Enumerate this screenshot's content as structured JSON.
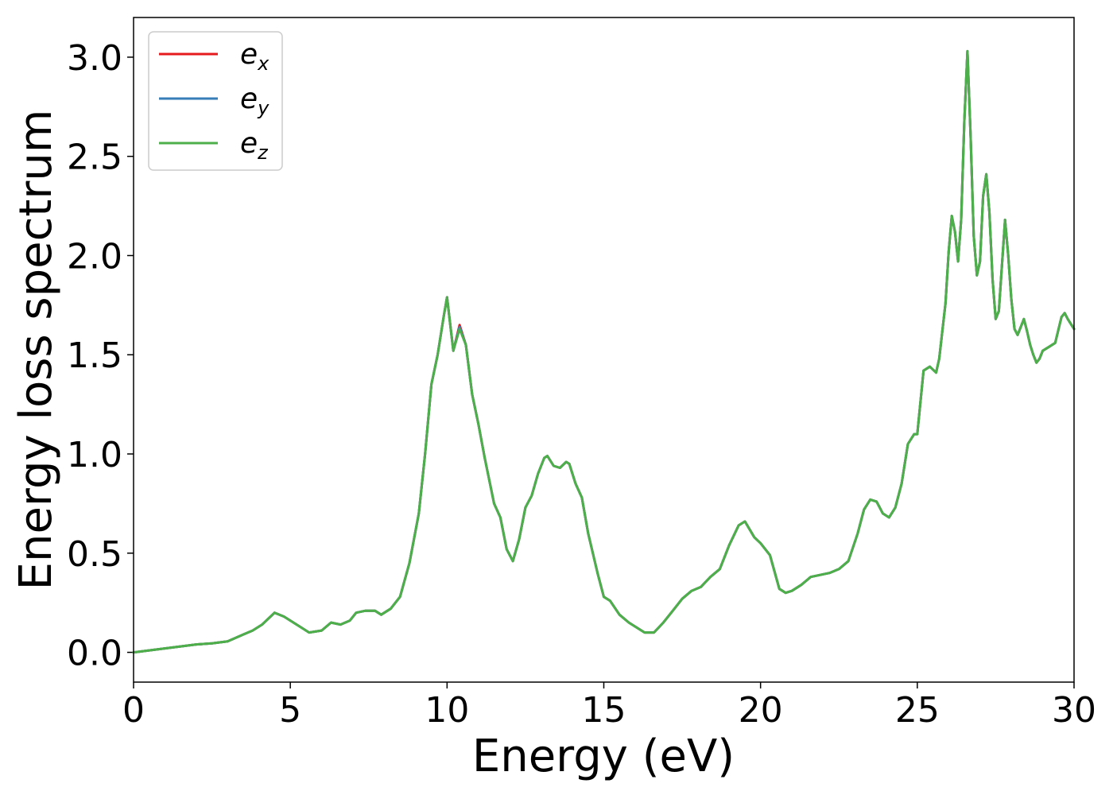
{
  "chart_data": {
    "type": "line",
    "xlabel": "Energy (eV)",
    "ylabel": "Energy loss spectrum",
    "xlim": [
      0,
      30
    ],
    "ylim": [
      -0.15,
      3.2
    ],
    "xticks": [
      0,
      5,
      10,
      15,
      20,
      25,
      30
    ],
    "xtick_labels": [
      "0",
      "5",
      "10",
      "15",
      "20",
      "25",
      "30"
    ],
    "yticks": [
      0.0,
      0.5,
      1.0,
      1.5,
      2.0,
      2.5,
      3.0
    ],
    "ytick_labels": [
      "0.0",
      "0.5",
      "1.0",
      "1.5",
      "2.0",
      "2.5",
      "3.0"
    ],
    "grid": false,
    "legend_position": "top-left",
    "series": [
      {
        "name": "e",
        "subscript": "x",
        "color": "#e41a1c",
        "x": [
          0,
          0.5,
          1,
          1.5,
          2,
          2.5,
          3,
          3.5,
          3.8,
          4.1,
          4.5,
          4.8,
          5.2,
          5.6,
          6.0,
          6.3,
          6.6,
          6.9,
          7.1,
          7.4,
          7.7,
          7.9,
          8.2,
          8.5,
          8.8,
          9.1,
          9.3,
          9.5,
          9.7,
          9.9,
          10.0,
          10.2,
          10.4,
          10.6,
          10.8,
          11.0,
          11.2,
          11.5,
          11.7,
          11.9,
          12.1,
          12.3,
          12.5,
          12.7,
          12.9,
          13.1,
          13.2,
          13.4,
          13.6,
          13.8,
          13.9,
          14.1,
          14.3,
          14.5,
          14.8,
          15.0,
          15.2,
          15.5,
          15.8,
          16.1,
          16.3,
          16.6,
          16.9,
          17.2,
          17.5,
          17.8,
          18.1,
          18.4,
          18.7,
          19.0,
          19.3,
          19.5,
          19.8,
          20.0,
          20.3,
          20.6,
          20.8,
          21.0,
          21.3,
          21.6,
          21.9,
          22.2,
          22.5,
          22.8,
          23.1,
          23.3,
          23.5,
          23.7,
          23.9,
          24.1,
          24.3,
          24.5,
          24.7,
          24.9,
          25.0,
          25.2,
          25.4,
          25.6,
          25.7,
          25.9,
          26.0,
          26.1,
          26.2,
          26.3,
          26.4,
          26.5,
          26.6,
          26.7,
          26.8,
          26.9,
          27.0,
          27.1,
          27.2,
          27.3,
          27.4,
          27.5,
          27.6,
          27.7,
          27.8,
          27.9,
          28.0,
          28.1,
          28.2,
          28.3,
          28.4,
          28.5,
          28.6,
          28.7,
          28.8,
          28.9,
          29.0,
          29.2,
          29.4,
          29.6,
          29.7,
          29.8,
          30.0
        ],
        "values": [
          0.0,
          0.01,
          0.02,
          0.03,
          0.04,
          0.045,
          0.055,
          0.09,
          0.11,
          0.14,
          0.2,
          0.18,
          0.14,
          0.1,
          0.11,
          0.15,
          0.14,
          0.16,
          0.2,
          0.21,
          0.21,
          0.19,
          0.22,
          0.28,
          0.45,
          0.7,
          1.0,
          1.35,
          1.5,
          1.7,
          1.79,
          1.52,
          1.65,
          1.55,
          1.3,
          1.15,
          0.98,
          0.75,
          0.68,
          0.52,
          0.46,
          0.57,
          0.73,
          0.79,
          0.9,
          0.98,
          0.99,
          0.94,
          0.93,
          0.96,
          0.95,
          0.85,
          0.78,
          0.6,
          0.4,
          0.28,
          0.26,
          0.19,
          0.15,
          0.12,
          0.1,
          0.1,
          0.15,
          0.21,
          0.27,
          0.31,
          0.33,
          0.38,
          0.42,
          0.54,
          0.64,
          0.66,
          0.58,
          0.55,
          0.49,
          0.32,
          0.3,
          0.31,
          0.34,
          0.38,
          0.39,
          0.4,
          0.42,
          0.46,
          0.6,
          0.72,
          0.77,
          0.76,
          0.7,
          0.68,
          0.73,
          0.85,
          1.05,
          1.1,
          1.1,
          1.42,
          1.44,
          1.41,
          1.48,
          1.76,
          2.02,
          2.2,
          2.12,
          1.97,
          2.18,
          2.68,
          3.03,
          2.6,
          2.1,
          1.9,
          1.97,
          2.3,
          2.41,
          2.22,
          1.88,
          1.68,
          1.72,
          1.95,
          2.18,
          2.0,
          1.78,
          1.63,
          1.6,
          1.64,
          1.68,
          1.62,
          1.55,
          1.5,
          1.46,
          1.48,
          1.52,
          1.54,
          1.56,
          1.69,
          1.71,
          1.68,
          1.63
        ]
      },
      {
        "name": "e",
        "subscript": "y",
        "color": "#377eb8",
        "x": [
          0,
          0.5,
          1,
          1.5,
          2,
          2.5,
          3,
          3.5,
          3.8,
          4.1,
          4.5,
          4.8,
          5.2,
          5.6,
          6.0,
          6.3,
          6.6,
          6.9,
          7.1,
          7.4,
          7.7,
          7.9,
          8.2,
          8.5,
          8.8,
          9.1,
          9.3,
          9.5,
          9.7,
          9.9,
          10.0,
          10.2,
          10.4,
          10.6,
          10.8,
          11.0,
          11.2,
          11.5,
          11.7,
          11.9,
          12.1,
          12.3,
          12.5,
          12.7,
          12.9,
          13.1,
          13.2,
          13.4,
          13.6,
          13.8,
          13.9,
          14.1,
          14.3,
          14.5,
          14.8,
          15.0,
          15.2,
          15.5,
          15.8,
          16.1,
          16.3,
          16.6,
          16.9,
          17.2,
          17.5,
          17.8,
          18.1,
          18.4,
          18.7,
          19.0,
          19.3,
          19.5,
          19.8,
          20.0,
          20.3,
          20.6,
          20.8,
          21.0,
          21.3,
          21.6,
          21.9,
          22.2,
          22.5,
          22.8,
          23.1,
          23.3,
          23.5,
          23.7,
          23.9,
          24.1,
          24.3,
          24.5,
          24.7,
          24.9,
          25.0,
          25.2,
          25.4,
          25.6,
          25.7,
          25.9,
          26.0,
          26.1,
          26.2,
          26.3,
          26.4,
          26.5,
          26.6,
          26.7,
          26.8,
          26.9,
          27.0,
          27.1,
          27.2,
          27.3,
          27.4,
          27.5,
          27.6,
          27.7,
          27.8,
          27.9,
          28.0,
          28.1,
          28.2,
          28.3,
          28.4,
          28.5,
          28.6,
          28.7,
          28.8,
          28.9,
          29.0,
          29.2,
          29.4,
          29.6,
          29.7,
          29.8,
          30.0
        ],
        "values": [
          0.0,
          0.01,
          0.02,
          0.03,
          0.04,
          0.045,
          0.055,
          0.09,
          0.11,
          0.14,
          0.2,
          0.18,
          0.14,
          0.1,
          0.11,
          0.15,
          0.14,
          0.16,
          0.2,
          0.21,
          0.21,
          0.19,
          0.22,
          0.28,
          0.45,
          0.7,
          1.0,
          1.35,
          1.5,
          1.7,
          1.79,
          1.52,
          1.64,
          1.55,
          1.3,
          1.15,
          0.98,
          0.75,
          0.68,
          0.52,
          0.46,
          0.57,
          0.73,
          0.79,
          0.9,
          0.98,
          0.99,
          0.94,
          0.93,
          0.96,
          0.95,
          0.85,
          0.78,
          0.6,
          0.4,
          0.28,
          0.26,
          0.19,
          0.15,
          0.12,
          0.1,
          0.1,
          0.15,
          0.21,
          0.27,
          0.31,
          0.33,
          0.38,
          0.42,
          0.54,
          0.64,
          0.66,
          0.58,
          0.55,
          0.49,
          0.32,
          0.3,
          0.31,
          0.34,
          0.38,
          0.39,
          0.4,
          0.42,
          0.46,
          0.6,
          0.72,
          0.77,
          0.76,
          0.7,
          0.68,
          0.73,
          0.85,
          1.05,
          1.1,
          1.1,
          1.42,
          1.44,
          1.41,
          1.48,
          1.76,
          2.02,
          2.2,
          2.12,
          1.97,
          2.18,
          2.68,
          3.03,
          2.6,
          2.1,
          1.9,
          1.97,
          2.3,
          2.41,
          2.22,
          1.88,
          1.68,
          1.72,
          1.95,
          2.18,
          2.0,
          1.78,
          1.63,
          1.6,
          1.64,
          1.68,
          1.62,
          1.55,
          1.5,
          1.46,
          1.48,
          1.52,
          1.54,
          1.56,
          1.69,
          1.71,
          1.68,
          1.63
        ]
      },
      {
        "name": "e",
        "subscript": "z",
        "color": "#4daf4a",
        "x": [
          0,
          0.5,
          1,
          1.5,
          2,
          2.5,
          3,
          3.5,
          3.8,
          4.1,
          4.5,
          4.8,
          5.2,
          5.6,
          6.0,
          6.3,
          6.6,
          6.9,
          7.1,
          7.4,
          7.7,
          7.9,
          8.2,
          8.5,
          8.8,
          9.1,
          9.3,
          9.5,
          9.7,
          9.9,
          10.0,
          10.2,
          10.4,
          10.6,
          10.8,
          11.0,
          11.2,
          11.5,
          11.7,
          11.9,
          12.1,
          12.3,
          12.5,
          12.7,
          12.9,
          13.1,
          13.2,
          13.4,
          13.6,
          13.8,
          13.9,
          14.1,
          14.3,
          14.5,
          14.8,
          15.0,
          15.2,
          15.5,
          15.8,
          16.1,
          16.3,
          16.6,
          16.9,
          17.2,
          17.5,
          17.8,
          18.1,
          18.4,
          18.7,
          19.0,
          19.3,
          19.5,
          19.8,
          20.0,
          20.3,
          20.6,
          20.8,
          21.0,
          21.3,
          21.6,
          21.9,
          22.2,
          22.5,
          22.8,
          23.1,
          23.3,
          23.5,
          23.7,
          23.9,
          24.1,
          24.3,
          24.5,
          24.7,
          24.9,
          25.0,
          25.2,
          25.4,
          25.6,
          25.7,
          25.9,
          26.0,
          26.1,
          26.2,
          26.3,
          26.4,
          26.5,
          26.6,
          26.7,
          26.8,
          26.9,
          27.0,
          27.1,
          27.2,
          27.3,
          27.4,
          27.5,
          27.6,
          27.7,
          27.8,
          27.9,
          28.0,
          28.1,
          28.2,
          28.3,
          28.4,
          28.5,
          28.6,
          28.7,
          28.8,
          28.9,
          29.0,
          29.2,
          29.4,
          29.6,
          29.7,
          29.8,
          30.0
        ],
        "values": [
          0.0,
          0.01,
          0.02,
          0.03,
          0.04,
          0.045,
          0.055,
          0.09,
          0.11,
          0.14,
          0.2,
          0.18,
          0.14,
          0.1,
          0.11,
          0.15,
          0.14,
          0.16,
          0.2,
          0.21,
          0.21,
          0.19,
          0.22,
          0.28,
          0.45,
          0.7,
          1.0,
          1.35,
          1.5,
          1.7,
          1.79,
          1.52,
          1.63,
          1.55,
          1.3,
          1.15,
          0.98,
          0.75,
          0.68,
          0.52,
          0.46,
          0.57,
          0.73,
          0.79,
          0.9,
          0.98,
          0.99,
          0.94,
          0.93,
          0.96,
          0.95,
          0.85,
          0.78,
          0.6,
          0.4,
          0.28,
          0.26,
          0.19,
          0.15,
          0.12,
          0.1,
          0.1,
          0.15,
          0.21,
          0.27,
          0.31,
          0.33,
          0.38,
          0.42,
          0.54,
          0.64,
          0.66,
          0.58,
          0.55,
          0.49,
          0.32,
          0.3,
          0.31,
          0.34,
          0.38,
          0.39,
          0.4,
          0.42,
          0.46,
          0.6,
          0.72,
          0.77,
          0.76,
          0.7,
          0.68,
          0.73,
          0.85,
          1.05,
          1.1,
          1.1,
          1.42,
          1.44,
          1.41,
          1.48,
          1.76,
          2.02,
          2.2,
          2.12,
          1.97,
          2.18,
          2.68,
          3.03,
          2.6,
          2.1,
          1.9,
          1.97,
          2.3,
          2.41,
          2.22,
          1.88,
          1.68,
          1.72,
          1.95,
          2.18,
          2.0,
          1.78,
          1.63,
          1.6,
          1.64,
          1.68,
          1.62,
          1.55,
          1.5,
          1.46,
          1.48,
          1.52,
          1.54,
          1.56,
          1.69,
          1.71,
          1.68,
          1.63
        ]
      }
    ]
  }
}
